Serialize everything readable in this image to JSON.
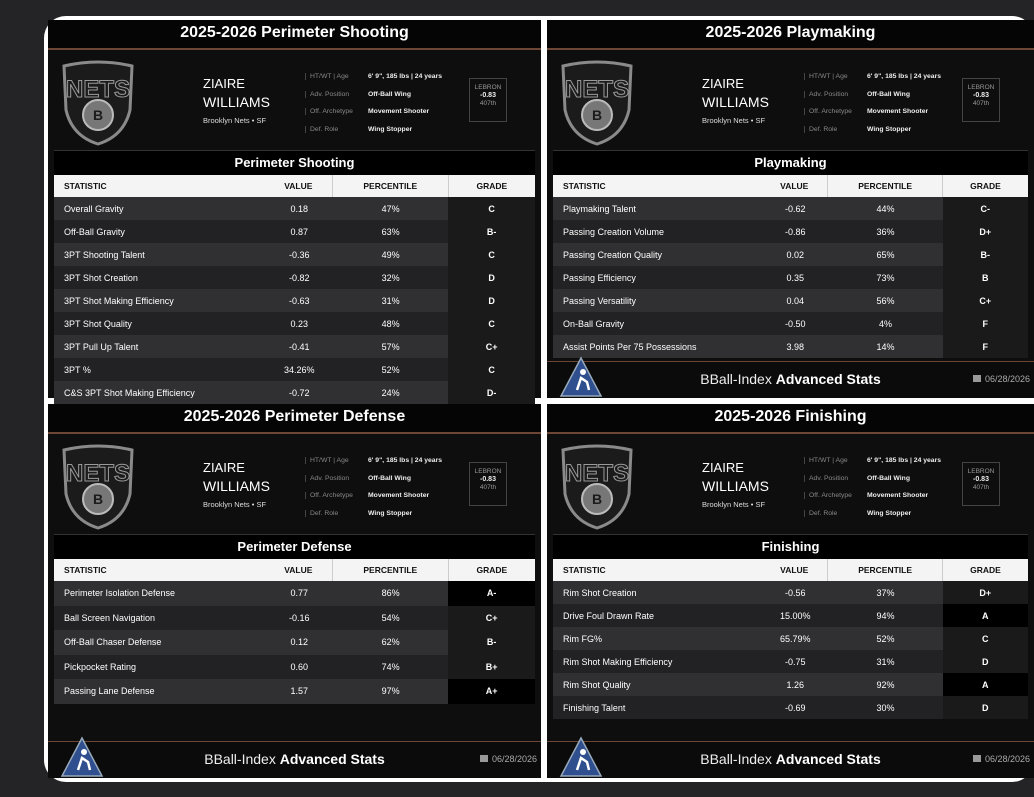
{
  "panels": [
    {
      "title": "2025-2026 Perimeter Shooting",
      "logo": "NETS",
      "first_name": "ZIAIRE",
      "last_name": "WILLIAMS",
      "team": "Brooklyn Nets • SF",
      "info": [
        {
          "label": "HT/WT | Age",
          "value": "6' 9\", 185 lbs | 24 years"
        },
        {
          "label": "Adv. Position",
          "value": "Off-Ball Wing"
        },
        {
          "label": "Off. Archetype",
          "value": "Movement Shooter"
        },
        {
          "label": "Def. Role",
          "value": "Wing Stopper"
        }
      ],
      "lebron": {
        "label": "LEBRON",
        "value": "-0.83",
        "rank": "407th"
      },
      "section": "Perimeter Shooting",
      "headers": [
        "STATISTIC",
        "VALUE",
        "PERCENTILE",
        "GRADE"
      ],
      "rows": [
        [
          "Overall Gravity",
          "0.18",
          "47%",
          "C"
        ],
        [
          "Off-Ball Gravity",
          "0.87",
          "63%",
          "B-"
        ],
        [
          "3PT Shooting Talent",
          "-0.36",
          "49%",
          "C"
        ],
        [
          "3PT Shot Creation",
          "-0.82",
          "32%",
          "D"
        ],
        [
          "3PT Shot Making Efficiency",
          "-0.63",
          "31%",
          "D"
        ],
        [
          "3PT Shot Quality",
          "0.23",
          "48%",
          "C"
        ],
        [
          "3PT Pull Up Talent",
          "-0.41",
          "57%",
          "C+"
        ],
        [
          "3PT %",
          "34.26%",
          "52%",
          "C"
        ],
        [
          "C&S 3PT Shot Making Efficiency",
          "-0.72",
          "24%",
          "D-"
        ]
      ]
    },
    {
      "title": "2025-2026 Playmaking",
      "logo": "NETS",
      "first_name": "ZIAIRE",
      "last_name": "WILLIAMS",
      "team": "Brooklyn Nets • SF",
      "info": [
        {
          "label": "HT/WT | Age",
          "value": "6' 9\", 185 lbs | 24 years"
        },
        {
          "label": "Adv. Position",
          "value": "Off-Ball Wing"
        },
        {
          "label": "Off. Archetype",
          "value": "Movement Shooter"
        },
        {
          "label": "Def. Role",
          "value": "Wing Stopper"
        }
      ],
      "lebron": {
        "label": "LEBRON",
        "value": "-0.83",
        "rank": "407th"
      },
      "section": "Playmaking",
      "headers": [
        "STATISTIC",
        "VALUE",
        "PERCENTILE",
        "GRADE"
      ],
      "rows": [
        [
          "Playmaking Talent",
          "-0.62",
          "44%",
          "C-"
        ],
        [
          "Passing Creation Volume",
          "-0.86",
          "36%",
          "D+"
        ],
        [
          "Passing Creation Quality",
          "0.02",
          "65%",
          "B-"
        ],
        [
          "Passing Efficiency",
          "0.35",
          "73%",
          "B"
        ],
        [
          "Passing Versatility",
          "0.04",
          "56%",
          "C+"
        ],
        [
          "On-Ball Gravity",
          "-0.50",
          "4%",
          "F"
        ],
        [
          "Assist Points Per 75 Possessions",
          "3.98",
          "14%",
          "F"
        ]
      ],
      "footer": {
        "brand": "BBall-Index",
        "suffix": "Advanced Stats",
        "date": "06/28/2026"
      }
    },
    {
      "title": "2025-2026 Perimeter Defense",
      "logo": "NETS",
      "first_name": "ZIAIRE",
      "last_name": "WILLIAMS",
      "team": "Brooklyn Nets • SF",
      "info": [
        {
          "label": "HT/WT | Age",
          "value": "6' 9\", 185 lbs | 24 years"
        },
        {
          "label": "Adv. Position",
          "value": "Off-Ball Wing"
        },
        {
          "label": "Off. Archetype",
          "value": "Movement Shooter"
        },
        {
          "label": "Def. Role",
          "value": "Wing Stopper"
        }
      ],
      "lebron": {
        "label": "LEBRON",
        "value": "-0.83",
        "rank": "407th"
      },
      "section": "Perimeter Defense",
      "headers": [
        "STATISTIC",
        "VALUE",
        "PERCENTILE",
        "GRADE"
      ],
      "rows": [
        [
          "Perimeter Isolation Defense",
          "0.77",
          "86%",
          "A-"
        ],
        [
          "Ball Screen Navigation",
          "-0.16",
          "54%",
          "C+"
        ],
        [
          "Off-Ball Chaser Defense",
          "0.12",
          "62%",
          "B-"
        ],
        [
          "Pickpocket Rating",
          "0.60",
          "74%",
          "B+"
        ],
        [
          "Passing Lane Defense",
          "1.57",
          "97%",
          "A+"
        ]
      ],
      "footer": {
        "brand": "BBall-Index",
        "suffix": "Advanced Stats",
        "date": "06/28/2026"
      }
    },
    {
      "title": "2025-2026 Finishing",
      "logo": "NETS",
      "first_name": "ZIAIRE",
      "last_name": "WILLIAMS",
      "team": "Brooklyn Nets • SF",
      "info": [
        {
          "label": "HT/WT | Age",
          "value": "6' 9\", 185 lbs | 24 years"
        },
        {
          "label": "Adv. Position",
          "value": "Off-Ball Wing"
        },
        {
          "label": "Off. Archetype",
          "value": "Movement Shooter"
        },
        {
          "label": "Def. Role",
          "value": "Wing Stopper"
        }
      ],
      "lebron": {
        "label": "LEBRON",
        "value": "-0.83",
        "rank": "407th"
      },
      "section": "Finishing",
      "headers": [
        "STATISTIC",
        "VALUE",
        "PERCENTILE",
        "GRADE"
      ],
      "rows": [
        [
          "Rim Shot Creation",
          "-0.56",
          "37%",
          "D+"
        ],
        [
          "Drive Foul Drawn Rate",
          "15.00%",
          "94%",
          "A"
        ],
        [
          "Rim FG%",
          "65.79%",
          "52%",
          "C"
        ],
        [
          "Rim Shot Making Efficiency",
          "-0.75",
          "31%",
          "D"
        ],
        [
          "Rim Shot Quality",
          "1.26",
          "92%",
          "A"
        ],
        [
          "Finishing Talent",
          "-0.69",
          "30%",
          "D"
        ]
      ],
      "footer": {
        "brand": "BBall-Index",
        "suffix": "Advanced Stats",
        "date": "06/28/2026"
      }
    }
  ]
}
